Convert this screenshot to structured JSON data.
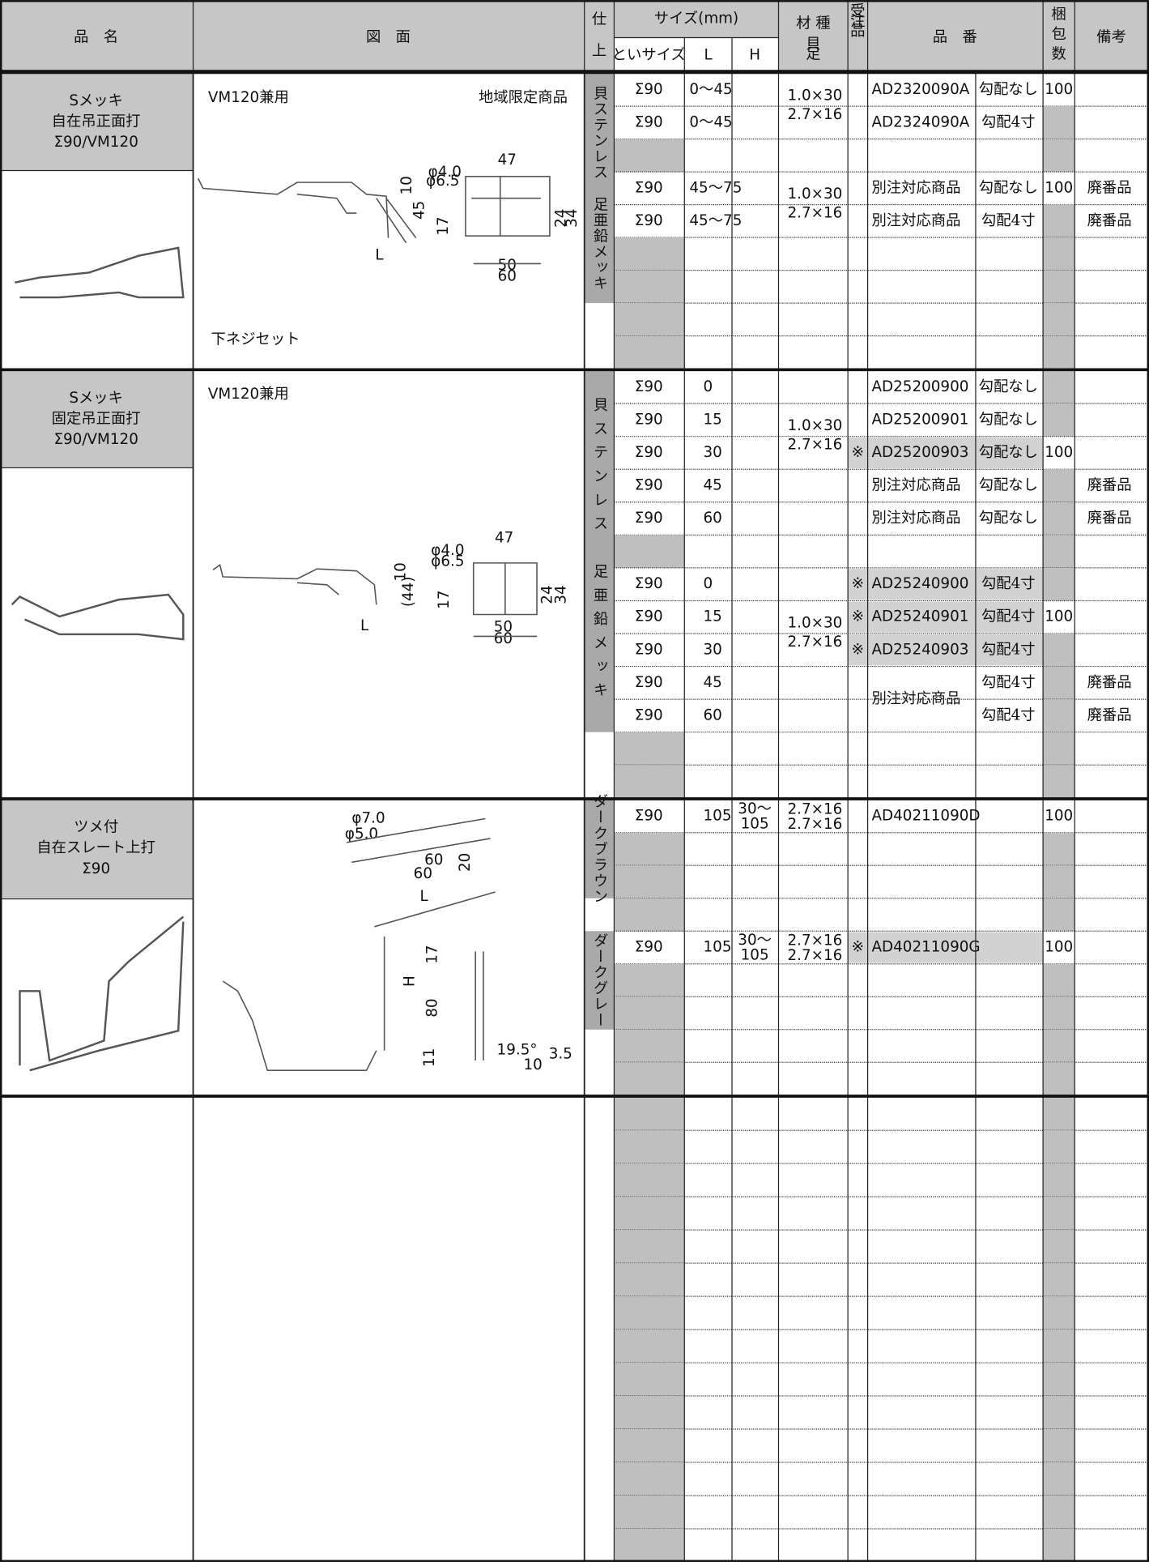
{
  "header": {
    "name": "品　名",
    "drawing": "図　面",
    "finish": [
      "仕",
      "上"
    ],
    "size": "サイズ(mm)",
    "gutter_size": "といサイズ",
    "L": "L",
    "H": "H",
    "material": "材 種",
    "material_sub": [
      "貝",
      "足"
    ],
    "order": [
      "受",
      "注",
      "品"
    ],
    "part_no": "品　番",
    "pack": [
      "梱",
      "包",
      "数"
    ],
    "note": "備考"
  },
  "sections": [
    {
      "name": [
        "Sメッキ",
        "自在吊正面打",
        "Σ90/VM120"
      ],
      "notes": [
        "VM120兼用",
        "地域限定商品",
        "下ネジセット"
      ],
      "finish": [
        "貝ステンレス　足亜鉛メッキ"
      ],
      "drawing_labels": [
        "φ4.0",
        "φ6.5",
        "47",
        "10",
        "45",
        "17",
        "24",
        "34",
        "50",
        "60",
        "L"
      ],
      "rows": [
        {
          "size": "Σ90",
          "L": "0〜45",
          "material": [
            "1.0×30",
            "2.7×16"
          ],
          "code": "AD2320090A",
          "slope": "勾配なし",
          "pack": "100"
        },
        {
          "size": "Σ90",
          "L": "0〜45",
          "code": "AD2324090A",
          "slope": "勾配4寸"
        },
        {},
        {
          "size": "Σ90",
          "L": "45〜75",
          "material": [
            "1.0×30",
            "2.7×16"
          ],
          "code": "別注対応商品",
          "slope": "勾配なし",
          "pack": "100",
          "note": "廃番品"
        },
        {
          "size": "Σ90",
          "L": "45〜75",
          "code": "別注対応商品",
          "slope": "勾配4寸",
          "note": "廃番品"
        },
        {},
        {},
        {},
        {}
      ]
    },
    {
      "name": [
        "Sメッキ",
        "固定吊正面打",
        "Σ90/VM120"
      ],
      "notes": [
        "VM120兼用"
      ],
      "finish": [
        "貝ステンレス　足亜鉛メッキ"
      ],
      "drawing_labels": [
        "φ4.0",
        "φ6.5",
        "47",
        "10",
        "(44)",
        "17",
        "24",
        "34",
        "50",
        "60",
        "L"
      ],
      "rows": [
        {
          "size": "Σ90",
          "L": "0",
          "code": "AD25200900",
          "slope": "勾配なし"
        },
        {
          "size": "Σ90",
          "L": "15",
          "material": [
            "1.0×30",
            "2.7×16"
          ],
          "code": "AD25200901",
          "slope": "勾配なし"
        },
        {
          "size": "Σ90",
          "L": "30",
          "order": "※",
          "code": "AD25200903",
          "slope": "勾配なし",
          "pack": "100"
        },
        {
          "size": "Σ90",
          "L": "45",
          "code": "別注対応商品",
          "slope": "勾配なし",
          "note": "廃番品"
        },
        {
          "size": "Σ90",
          "L": "60",
          "code": "別注対応商品",
          "slope": "勾配なし",
          "note": "廃番品"
        },
        {},
        {
          "size": "Σ90",
          "L": "0",
          "order": "※",
          "code": "AD25240900",
          "slope": "勾配4寸"
        },
        {
          "size": "Σ90",
          "L": "15",
          "material": [
            "1.0×30",
            "2.7×16"
          ],
          "order": "※",
          "code": "AD25240901",
          "slope": "勾配4寸",
          "pack": "100"
        },
        {
          "size": "Σ90",
          "L": "30",
          "order": "※",
          "code": "AD25240903",
          "slope": "勾配4寸"
        },
        {
          "size": "Σ90",
          "L": "45",
          "code": "別注対応商品",
          "slope": "勾配4寸",
          "note": "廃番品"
        },
        {
          "size": "Σ90",
          "L": "60",
          "slope": "勾配4寸",
          "note": "廃番品"
        },
        {},
        {}
      ]
    },
    {
      "name": [
        "ツメ付",
        "自在スレート上打",
        "Σ90"
      ],
      "finish": [
        "ダークブラウン",
        "ダークグレー"
      ],
      "drawing_labels": [
        "φ7.0",
        "φ5.0",
        "60",
        "60",
        "20",
        "L",
        "17",
        "H",
        "80",
        "11",
        "19.5°",
        "10",
        "3.5"
      ],
      "rows": [
        {
          "size": "Σ90",
          "L": "105",
          "H": [
            "30〜",
            "105"
          ],
          "material": [
            "2.7×16",
            "2.7×16"
          ],
          "code": "AD40211090D",
          "pack": "100"
        },
        {},
        {},
        {},
        {
          "size": "Σ90",
          "L": "105",
          "H": [
            "30〜",
            "105"
          ],
          "material": [
            "2.7×16",
            "2.7×16"
          ],
          "order": "※",
          "code": "AD40211090G",
          "pack": "100"
        },
        {},
        {},
        {},
        {}
      ]
    },
    {
      "rows": [
        {},
        {},
        {},
        {},
        {},
        {},
        {},
        {},
        {},
        {},
        {},
        {},
        {},
        {}
      ]
    }
  ]
}
